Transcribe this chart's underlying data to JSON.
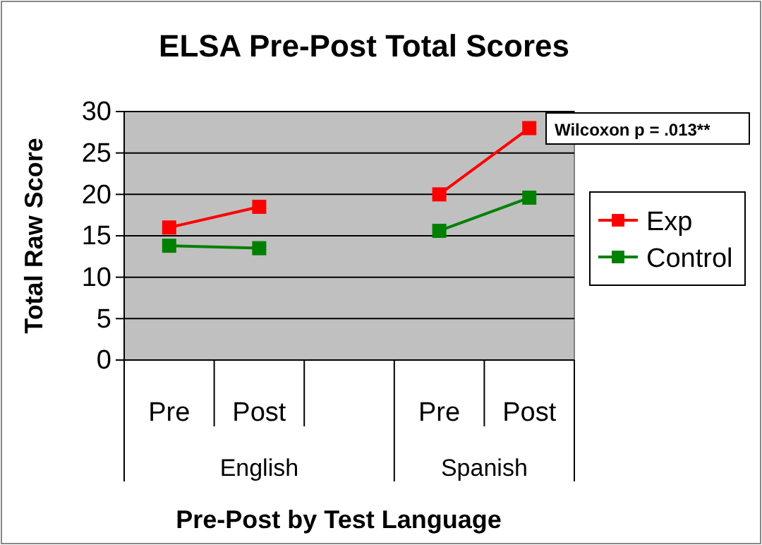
{
  "chart_data": {
    "type": "line",
    "title": "ELSA Pre-Post Total Scores",
    "xlabel": "Pre-Post by Test Language",
    "ylabel": "Total Raw Score",
    "categories": [
      "Pre",
      "Post",
      null,
      "Pre",
      "Post"
    ],
    "series": [
      {
        "name": "Exp",
        "color": "#ff0000",
        "values": [
          16,
          18.5,
          null,
          20,
          28
        ]
      },
      {
        "name": "Control",
        "color": "#008000",
        "values": [
          13.8,
          13.5,
          null,
          15.6,
          19.6
        ]
      }
    ],
    "ylim": [
      0,
      30
    ],
    "yticks": [
      0,
      5,
      10,
      15,
      20,
      25,
      30
    ],
    "grid": "y",
    "legend": "right",
    "marker": "square",
    "line_style": "solid",
    "annotations": [
      "English",
      "Spanish",
      "Wilcoxon p = .013**"
    ]
  }
}
